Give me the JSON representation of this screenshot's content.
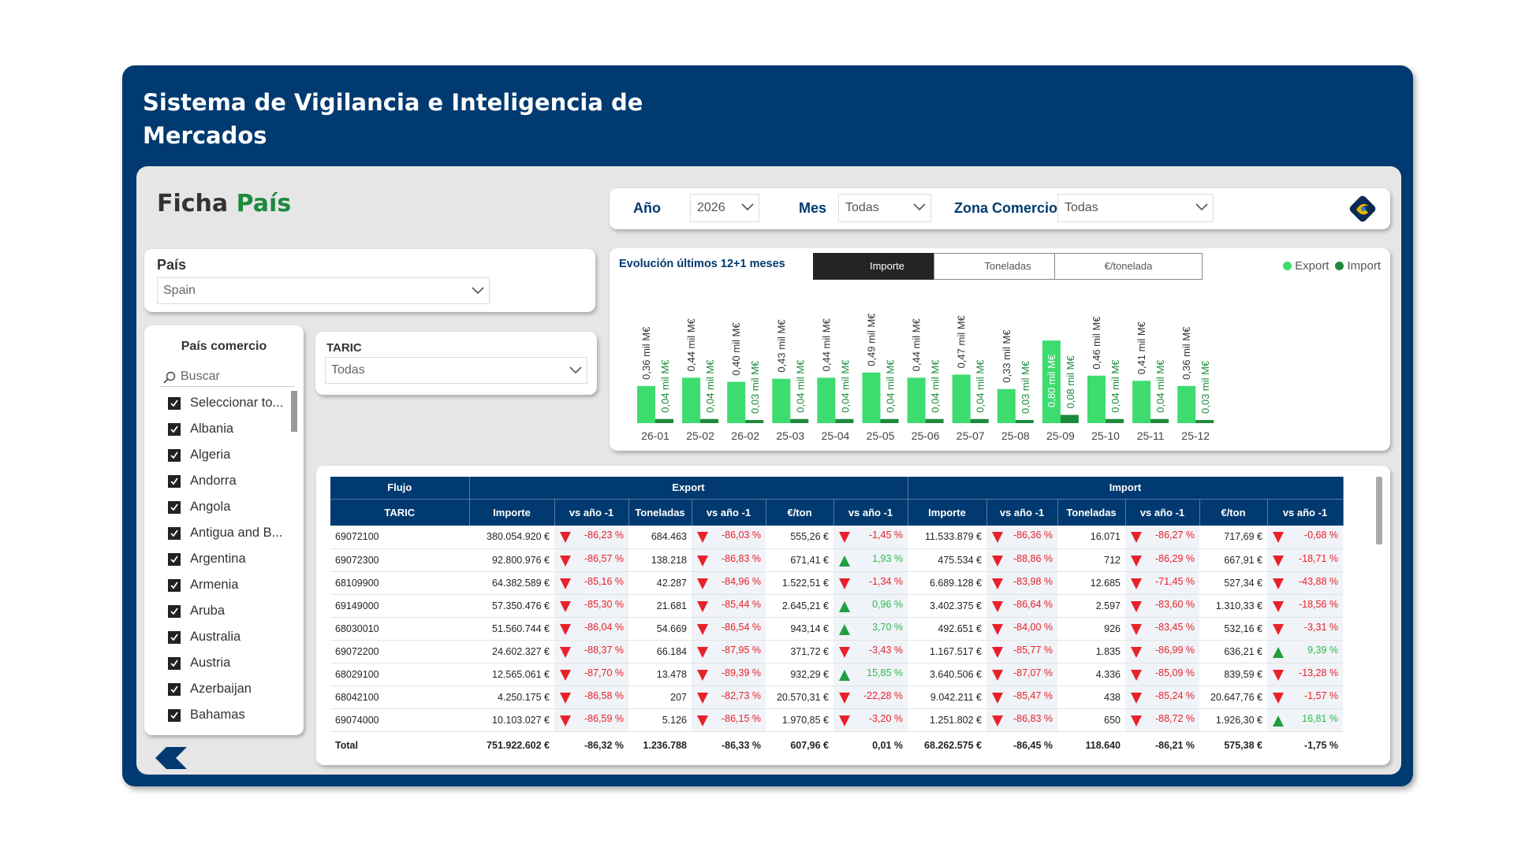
{
  "app": {
    "title": "Sistema de Vigilancia e Inteligencia de Mercados"
  },
  "page": {
    "title_part1": "Ficha",
    "title_part2": "País"
  },
  "filters": {
    "anio_label": "Año",
    "anio_value": "2026",
    "mes_label": "Mes",
    "mes_value": "Todas",
    "zona_label": "Zona Comercio",
    "zona_value": "Todas"
  },
  "pais": {
    "label": "País",
    "value": "Spain"
  },
  "pais_comercio": {
    "title": "País comercio",
    "search_placeholder": "Buscar",
    "items": [
      "Seleccionar to...",
      "Albania",
      "Algeria",
      "Andorra",
      "Angola",
      "Antigua and B...",
      "Argentina",
      "Armenia",
      "Aruba",
      "Australia",
      "Austria",
      "Azerbaijan",
      "Bahamas"
    ]
  },
  "taric": {
    "label": "TARIC",
    "value": "Todas"
  },
  "chart": {
    "title": "Evolución últimos 12+1 meses",
    "tabs": [
      "Importe",
      "Toneladas",
      "€/tonelada"
    ],
    "active_tab": "Importe",
    "legend": [
      "Export",
      "Import"
    ],
    "colors": {
      "export": "#3ddc6f",
      "import": "#1e8a3c"
    }
  },
  "chart_data": {
    "type": "bar",
    "categories": [
      "26-01",
      "25-02",
      "26-02",
      "25-03",
      "25-04",
      "25-05",
      "25-06",
      "25-07",
      "25-08",
      "25-09",
      "25-10",
      "25-11",
      "25-12"
    ],
    "series": [
      {
        "name": "Export",
        "values": [
          0.36,
          0.44,
          0.4,
          0.43,
          0.44,
          0.49,
          0.44,
          0.47,
          0.33,
          0.8,
          0.46,
          0.41,
          0.36
        ],
        "labels": [
          "0,36 mil M€",
          "0,44 mil M€",
          "0,40 mil M€",
          "0,43 mil M€",
          "0,44 mil M€",
          "0,49 mil M€",
          "0,44 mil M€",
          "0,47 mil M€",
          "0,33 mil M€",
          "0,80 mil M€",
          "0,46 mil M€",
          "0,41 mil M€",
          "0,36 mil M€"
        ]
      },
      {
        "name": "Import",
        "values": [
          0.04,
          0.04,
          0.03,
          0.04,
          0.04,
          0.04,
          0.04,
          0.04,
          0.03,
          0.08,
          0.04,
          0.04,
          0.03
        ],
        "labels": [
          "0,04 mil M€",
          "0,04 mil M€",
          "0,03 mil M€",
          "0,04 mil M€",
          "0,04 mil M€",
          "0,04 mil M€",
          "0,04 mil M€",
          "0,04 mil M€",
          "0,03 mil M€",
          "0,08 mil M€",
          "0,04 mil M€",
          "0,04 mil M€",
          "0,03 mil M€"
        ]
      }
    ]
  },
  "table": {
    "groups": [
      "Flujo",
      "Export",
      "Import"
    ],
    "columns": [
      "TARIC",
      "Importe",
      "vs año -1",
      "Toneladas",
      "vs año -1",
      "€/ton",
      "vs año -1",
      "Importe",
      "vs año -1",
      "Toneladas",
      "vs año -1",
      "€/ton",
      "vs año -1"
    ],
    "rows": [
      [
        "69072100",
        "380.054.920 €",
        "-86,23 %",
        "684.463",
        "-86,03 %",
        "555,26 €",
        "-1,45 %",
        "11.533.879 €",
        "-86,36 %",
        "16.071",
        "-86,27 %",
        "717,69 €",
        "-0,68 %"
      ],
      [
        "69072300",
        "92.800.976 €",
        "-86,57 %",
        "138.218",
        "-86,83 %",
        "671,41 €",
        "1,93 %",
        "475.534 €",
        "-88,86 %",
        "712",
        "-86,29 %",
        "667,91 €",
        "-18,71 %"
      ],
      [
        "68109900",
        "64.382.589 €",
        "-85,16 %",
        "42.287",
        "-84,96 %",
        "1.522,51 €",
        "-1,34 %",
        "6.689.128 €",
        "-83,98 %",
        "12.685",
        "-71,45 %",
        "527,34 €",
        "-43,88 %"
      ],
      [
        "69149000",
        "57.350.476 €",
        "-85,30 %",
        "21.681",
        "-85,44 %",
        "2.645,21 €",
        "0,96 %",
        "3.402.375 €",
        "-86,64 %",
        "2.597",
        "-83,60 %",
        "1.310,33 €",
        "-18,56 %"
      ],
      [
        "68030010",
        "51.560.744 €",
        "-86,04 %",
        "54.669",
        "-86,54 %",
        "943,14 €",
        "3,70 %",
        "492.651 €",
        "-84,00 %",
        "926",
        "-83,45 %",
        "532,16 €",
        "-3,31 %"
      ],
      [
        "69072200",
        "24.602.327 €",
        "-88,37 %",
        "66.184",
        "-87,95 %",
        "371,72 €",
        "-3,43 %",
        "1.167.517 €",
        "-85,77 %",
        "1.835",
        "-86,99 %",
        "636,21 €",
        "9,39 %"
      ],
      [
        "68029100",
        "12.565.061 €",
        "-87,70 %",
        "13.478",
        "-89,39 %",
        "932,29 €",
        "15,85 %",
        "3.640.506 €",
        "-87,07 %",
        "4.336",
        "-85,09 %",
        "839,59 €",
        "-13,28 %"
      ],
      [
        "68042100",
        "4.250.175 €",
        "-86,58 %",
        "207",
        "-82,73 %",
        "20.570,31 €",
        "-22,28 %",
        "9.042.211 €",
        "-85,47 %",
        "438",
        "-85,24 %",
        "20.647,76 €",
        "-1,57 %"
      ],
      [
        "69074000",
        "10.103.027 €",
        "-86,59 %",
        "5.126",
        "-86,15 %",
        "1.970,85 €",
        "-3,20 %",
        "1.251.802 €",
        "-86,83 %",
        "650",
        "-88,72 %",
        "1.926,30 €",
        "16,81 %"
      ]
    ],
    "total": [
      "Total",
      "751.922.602 €",
      "-86,32 %",
      "1.236.788",
      "-86,33 %",
      "607,96 €",
      "0,01 %",
      "68.262.575 €",
      "-86,45 %",
      "118.640",
      "-86,21 %",
      "575,38 €",
      "-1,75 %"
    ]
  }
}
